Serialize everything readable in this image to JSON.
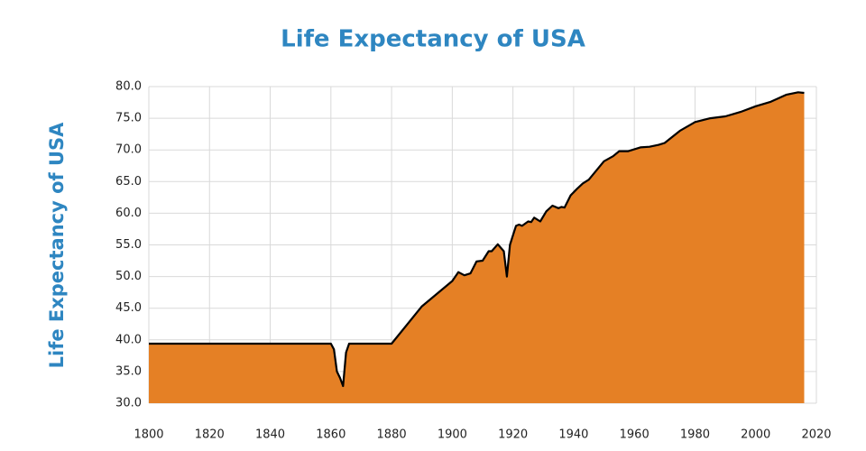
{
  "chart_data": {
    "type": "area",
    "title": "Life Expectancy of USA",
    "y_label": "Life Expectancy of USA",
    "x": [
      1800,
      1860,
      1861,
      1862,
      1863,
      1864,
      1865,
      1866,
      1880,
      1890,
      1900,
      1902,
      1904,
      1906,
      1908,
      1910,
      1912,
      1913,
      1915,
      1917,
      1918,
      1919,
      1920,
      1921,
      1922,
      1923,
      1925,
      1926,
      1927,
      1929,
      1931,
      1933,
      1935,
      1936,
      1937,
      1939,
      1941,
      1943,
      1945,
      1950,
      1953,
      1955,
      1958,
      1962,
      1965,
      1968,
      1970,
      1975,
      1980,
      1985,
      1990,
      1995,
      2000,
      2005,
      2010,
      2014,
      2016
    ],
    "values": [
      39.4,
      39.4,
      38.5,
      35,
      34,
      32.7,
      38,
      39.4,
      39.4,
      45.3,
      49.3,
      50.7,
      50.2,
      50.5,
      52.4,
      52.5,
      54,
      54,
      55.1,
      54,
      50,
      55,
      56.5,
      58,
      58.2,
      58,
      58.7,
      58.6,
      59.3,
      58.7,
      60.3,
      61.2,
      60.8,
      61,
      60.9,
      62.8,
      63.8,
      64.7,
      65.3,
      68.2,
      69,
      69.8,
      69.8,
      70.4,
      70.5,
      70.8,
      71.1,
      73,
      74.4,
      75,
      75.3,
      76,
      76.9,
      77.6,
      78.7,
      79.1,
      79
    ],
    "color": "#e58025",
    "line_color": "#000000",
    "xlim": [
      1800,
      2020
    ],
    "xticks": [
      1800,
      1820,
      1840,
      1860,
      1880,
      1900,
      1920,
      1940,
      1960,
      1980,
      2000,
      2020
    ],
    "ylim": [
      30,
      80
    ],
    "yticks": [
      {
        "value": 30,
        "label": "30.0"
      },
      {
        "value": 35,
        "label": "35.0"
      },
      {
        "value": 40,
        "label": "40.0"
      },
      {
        "value": 45,
        "label": "45.0"
      },
      {
        "value": 50,
        "label": "50.0"
      },
      {
        "value": 55,
        "label": "55.0"
      },
      {
        "value": 60,
        "label": "60.0"
      },
      {
        "value": 65,
        "label": "65.0"
      },
      {
        "value": 70,
        "label": "70.0"
      },
      {
        "value": 75,
        "label": "75.0"
      },
      {
        "value": 80,
        "label": "80.0"
      }
    ],
    "grid": true
  }
}
